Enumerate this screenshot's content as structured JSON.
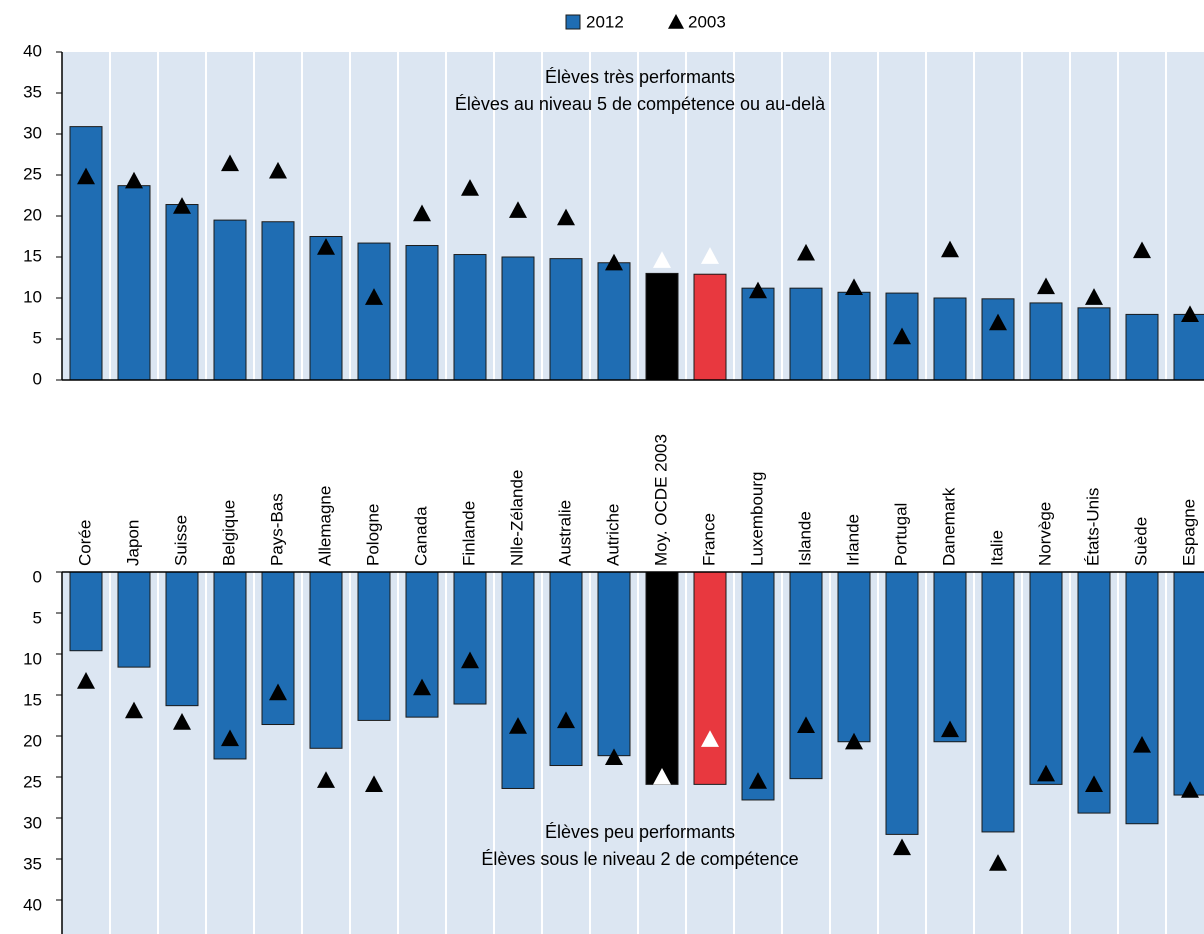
{
  "chart_data": [
    {
      "type": "bar",
      "annotation": [
        "Élèves très performants",
        "Élèves au niveau 5 de compétence ou au-delà"
      ],
      "series": [
        {
          "name": "2012",
          "color": "#1f6db3",
          "colors": [
            "#1f6db3",
            "#1f6db3",
            "#1f6db3",
            "#1f6db3",
            "#1f6db3",
            "#1f6db3",
            "#1f6db3",
            "#1f6db3",
            "#1f6db3",
            "#1f6db3",
            "#1f6db3",
            "#1f6db3",
            "#000000",
            "#e8383f",
            "#1f6db3",
            "#1f6db3",
            "#1f6db3",
            "#1f6db3",
            "#1f6db3",
            "#1f6db3",
            "#1f6db3",
            "#1f6db3",
            "#1f6db3",
            "#1f6db3"
          ],
          "values": [
            30.9,
            23.7,
            21.4,
            19.5,
            19.3,
            17.5,
            16.7,
            16.4,
            15.3,
            15.0,
            14.8,
            14.3,
            13.0,
            12.9,
            11.2,
            11.2,
            10.7,
            10.6,
            10.0,
            9.9,
            9.4,
            8.8,
            8.0,
            8.0
          ]
        },
        {
          "name": "2003",
          "marker": "triangle",
          "color": "#000000",
          "colors": [
            "#000000",
            "#000000",
            "#000000",
            "#000000",
            "#000000",
            "#000000",
            "#000000",
            "#000000",
            "#000000",
            "#000000",
            "#000000",
            "#000000",
            "#ffffff",
            "#ffffff",
            "#000000",
            "#000000",
            "#000000",
            "#000000",
            "#000000",
            "#000000",
            "#000000",
            "#000000",
            "#000000",
            "#000000"
          ],
          "values": [
            24.8,
            24.3,
            21.2,
            26.4,
            25.5,
            16.2,
            10.1,
            20.3,
            23.4,
            20.7,
            19.8,
            14.3,
            14.6,
            15.1,
            10.9,
            15.5,
            11.3,
            5.3,
            15.9,
            7.0,
            11.4,
            10.1,
            15.8,
            8.0
          ]
        }
      ],
      "ylim": [
        0,
        40
      ],
      "yticks": [
        0,
        5,
        10,
        15,
        20,
        25,
        30,
        35,
        40
      ],
      "grid": true
    },
    {
      "type": "bar",
      "annotation": [
        "Élèves peu performants",
        "Élèves sous le niveau 2 de compétence"
      ],
      "categories": [
        "Corée",
        "Japon",
        "Suisse",
        "Belgique",
        "Pays-Bas",
        "Allemagne",
        "Pologne",
        "Canada",
        "Finlande",
        "Nlle-Zélande",
        "Australie",
        "Autriche",
        "Moy. OCDE 2003",
        "France",
        "Luxembourg",
        "Islande",
        "Irlande",
        "Portugal",
        "Danemark",
        "Italie",
        "Norvège",
        "États-Unis",
        "Suède",
        "Espagne"
      ],
      "category_colors": [
        "#000000",
        "#000000",
        "#000000",
        "#000000",
        "#000000",
        "#000000",
        "#000000",
        "#000000",
        "#000000",
        "#000000",
        "#000000",
        "#000000",
        "#000000",
        "#e8383f",
        "#000000",
        "#000000",
        "#000000",
        "#000000",
        "#000000",
        "#000000",
        "#000000",
        "#000000",
        "#000000",
        "#000000"
      ],
      "series": [
        {
          "color": "#1f6db3",
          "colors": [
            "#1f6db3",
            "#1f6db3",
            "#1f6db3",
            "#1f6db3",
            "#1f6db3",
            "#1f6db3",
            "#1f6db3",
            "#1f6db3",
            "#1f6db3",
            "#1f6db3",
            "#1f6db3",
            "#1f6db3",
            "#000000",
            "#e8383f",
            "#1f6db3",
            "#1f6db3",
            "#1f6db3",
            "#1f6db3",
            "#1f6db3",
            "#1f6db3",
            "#1f6db3",
            "#1f6db3",
            "#1f6db3",
            "#1f6db3"
          ],
          "values": [
            9.6,
            11.6,
            16.3,
            22.8,
            18.6,
            21.5,
            18.1,
            17.7,
            16.1,
            26.4,
            23.6,
            22.4,
            25.9,
            25.9,
            27.8,
            25.2,
            20.7,
            32.0,
            20.7,
            31.7,
            25.9,
            29.4,
            30.7,
            27.2
          ]
        },
        {
          "marker": "triangle",
          "color": "#000000",
          "colors": [
            "#000000",
            "#000000",
            "#000000",
            "#000000",
            "#000000",
            "#000000",
            "#000000",
            "#000000",
            "#000000",
            "#000000",
            "#000000",
            "#000000",
            "#ffffff",
            "#ffffff",
            "#000000",
            "#000000",
            "#000000",
            "#000000",
            "#000000",
            "#000000",
            "#000000",
            "#000000",
            "#000000",
            "#000000"
          ],
          "values": [
            13.3,
            16.9,
            18.3,
            20.3,
            14.7,
            25.4,
            25.9,
            14.1,
            10.8,
            18.8,
            18.1,
            22.6,
            25.0,
            20.4,
            25.5,
            18.7,
            20.7,
            33.6,
            19.2,
            35.5,
            24.6,
            25.9,
            21.1,
            26.6
          ]
        }
      ],
      "ylim": [
        0,
        40
      ],
      "yticks": [
        0,
        5,
        10,
        15,
        20,
        25,
        30,
        35,
        40
      ],
      "inverted": true,
      "grid": true
    }
  ]
}
